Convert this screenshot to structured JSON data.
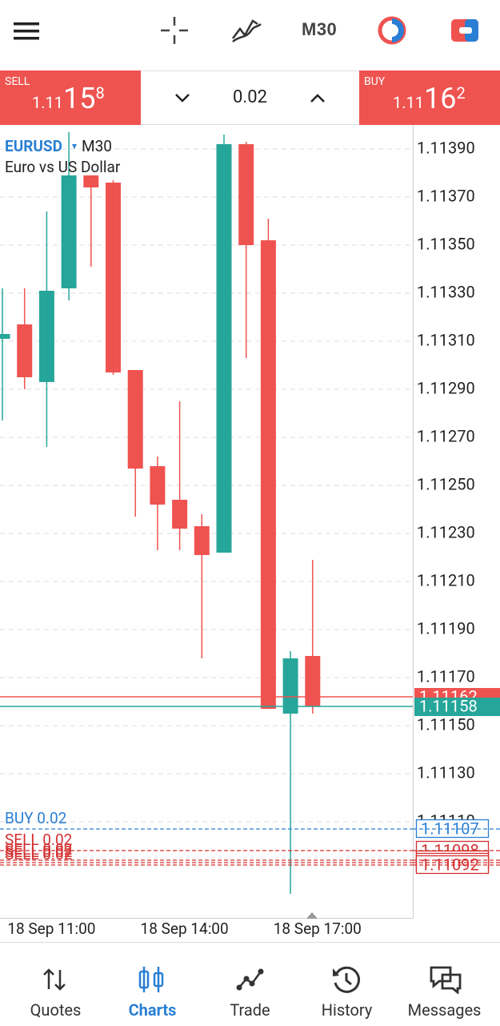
{
  "top_bar": {
    "timeframe": "M30"
  },
  "trade_panel": {
    "sell": {
      "label": "SELL",
      "price_prefix": "1.11",
      "price_big": "15",
      "price_small": "8"
    },
    "volume": "0.02",
    "buy": {
      "label": "BUY",
      "price_prefix": "1.11",
      "price_big": "16",
      "price_small": "2"
    }
  },
  "chart_data": {
    "type": "candlestick",
    "symbol": "EURUSD",
    "timeframe": "M30",
    "description": "Euro vs US Dollar",
    "x": [
      null,
      null,
      "18 Sep 11:00",
      null,
      null,
      null,
      null,
      null,
      "18 Sep 14:00",
      null,
      null,
      null,
      null,
      null,
      "18 Sep 17:00"
    ],
    "open": [
      1.11311,
      1.11317,
      1.11293,
      1.11332,
      1.11379,
      1.11376,
      1.11298,
      1.11258,
      1.11244,
      1.11233,
      1.11222,
      1.11392,
      1.11352,
      1.11155,
      1.11179
    ],
    "high": [
      1.11332,
      1.11332,
      1.11364,
      1.11397,
      1.11379,
      1.11377,
      1.11298,
      1.11262,
      1.11285,
      1.11238,
      1.11396,
      1.11393,
      1.11361,
      1.11181,
      1.11219
    ],
    "low": [
      1.11277,
      1.1129,
      1.11266,
      1.11327,
      1.11341,
      1.11296,
      1.11237,
      1.11223,
      1.11223,
      1.11178,
      1.11222,
      1.11303,
      1.11157,
      1.1108,
      1.11155
    ],
    "close": [
      1.11313,
      1.11295,
      1.11331,
      1.11379,
      1.11374,
      1.11297,
      1.11257,
      1.11242,
      1.11232,
      1.11221,
      1.11392,
      1.1135,
      1.11157,
      1.11178,
      1.11158
    ],
    "up_color": "#26a69a",
    "down_color": "#ef5350",
    "ylim": [
      1.1107,
      1.114
    ],
    "yticks": [
      {
        "value": 1.1139,
        "label": "1.11390"
      },
      {
        "value": 1.1137,
        "label": "1.11370"
      },
      {
        "value": 1.1135,
        "label": "1.11350"
      },
      {
        "value": 1.1133,
        "label": "1.11330"
      },
      {
        "value": 1.1131,
        "label": "1.11310"
      },
      {
        "value": 1.1129,
        "label": "1.11290"
      },
      {
        "value": 1.1127,
        "label": "1.11270"
      },
      {
        "value": 1.1125,
        "label": "1.11250"
      },
      {
        "value": 1.1123,
        "label": "1.11230"
      },
      {
        "value": 1.1121,
        "label": "1.11210"
      },
      {
        "value": 1.1119,
        "label": "1.11190"
      },
      {
        "value": 1.1117,
        "label": "1.11170"
      },
      {
        "value": 1.1115,
        "label": "1.11150"
      },
      {
        "value": 1.1113,
        "label": "1.11130"
      },
      {
        "value": 1.1111,
        "label": "1.11110"
      }
    ],
    "grid": true,
    "ask": {
      "value": 1.11162,
      "label": "1.11162",
      "color": "#ef5350"
    },
    "bid": {
      "value": 1.11158,
      "label": "1.11158",
      "color": "#26a69a"
    },
    "orders": [
      {
        "label": "BUY 0.02",
        "price": 1.11107,
        "price_label": "1.11107",
        "color": "#2a7fd4"
      },
      {
        "label": "SELL 0.02",
        "price": 1.11098,
        "price_label": "1.11098",
        "color": "#d32f2f"
      },
      {
        "label": "SELL 0.02",
        "price": 1.11094,
        "price_label": "1.11094",
        "color": "#d32f2f"
      },
      {
        "label": "SELL 0.02",
        "price": 1.11093,
        "price_label": "1.11093",
        "color": "#d32f2f"
      },
      {
        "label": "SELL 0.02",
        "price": 1.11092,
        "price_label": "1.11092",
        "color": "#d32f2f"
      }
    ]
  },
  "nav": {
    "items": [
      "Quotes",
      "Charts",
      "Trade",
      "History",
      "Messages"
    ],
    "active": 1
  }
}
